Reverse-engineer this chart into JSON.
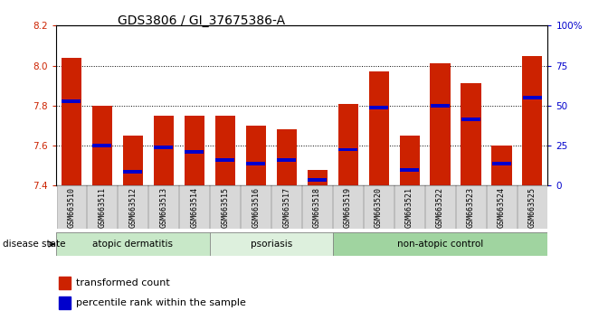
{
  "title": "GDS3806 / GI_37675386-A",
  "samples": [
    "GSM663510",
    "GSM663511",
    "GSM663512",
    "GSM663513",
    "GSM663514",
    "GSM663515",
    "GSM663516",
    "GSM663517",
    "GSM663518",
    "GSM663519",
    "GSM663520",
    "GSM663521",
    "GSM663522",
    "GSM663523",
    "GSM663524",
    "GSM663525"
  ],
  "bar_values": [
    8.04,
    7.8,
    7.65,
    7.75,
    7.75,
    7.75,
    7.7,
    7.68,
    7.48,
    7.81,
    7.97,
    7.65,
    8.01,
    7.91,
    7.6,
    8.05
  ],
  "percentile_values": [
    7.82,
    7.6,
    7.47,
    7.59,
    7.57,
    7.53,
    7.51,
    7.53,
    7.43,
    7.58,
    7.79,
    7.48,
    7.8,
    7.73,
    7.51,
    7.84
  ],
  "ylim_left": [
    7.4,
    8.2
  ],
  "ylim_right": [
    0,
    100
  ],
  "right_ticks": [
    0,
    25,
    50,
    75,
    100
  ],
  "right_tick_labels": [
    "0",
    "25",
    "50",
    "75",
    "100%"
  ],
  "left_ticks": [
    7.4,
    7.6,
    7.8,
    8.0,
    8.2
  ],
  "bar_color": "#cc2200",
  "percentile_color": "#0000cc",
  "bar_width": 0.65,
  "groups": [
    {
      "label": "atopic dermatitis",
      "start": 0,
      "end": 4,
      "color": "#c8e8c8"
    },
    {
      "label": "psoriasis",
      "start": 5,
      "end": 8,
      "color": "#ddf0dd"
    },
    {
      "label": "non-atopic control",
      "start": 9,
      "end": 15,
      "color": "#a0d4a0"
    }
  ],
  "disease_state_label": "disease state",
  "legend_items": [
    {
      "label": "transformed count",
      "color": "#cc2200"
    },
    {
      "label": "percentile rank within the sample",
      "color": "#0000cc"
    }
  ],
  "background_color": "#ffffff",
  "tick_bg_color": "#d8d8d8",
  "tick_border_color": "#aaaaaa"
}
